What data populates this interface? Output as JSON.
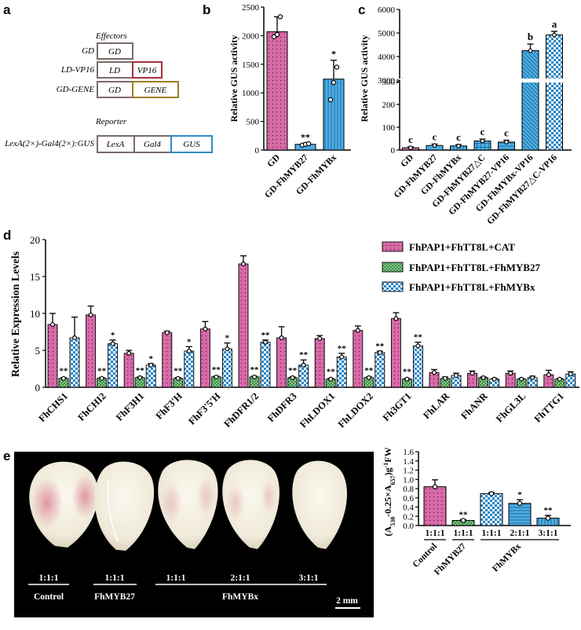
{
  "panel_labels": {
    "a": "a",
    "b": "b",
    "c": "c",
    "d": "d",
    "e": "e"
  },
  "colors": {
    "pink": "#d86aa8",
    "blue": "#4aaee6",
    "green": "#2f8a3a",
    "white": "#ffffff",
    "box_gd": "#7a6a6a",
    "box_vp16": "#a2333d",
    "box_gene": "#9b7d22",
    "box_gus": "#2d8cc4"
  },
  "panel_a": {
    "effectors_title": "Effectors",
    "reporter_title": "Reporter",
    "rows": [
      {
        "label": "GD",
        "boxes": [
          "GD"
        ]
      },
      {
        "label": "LD-VP16",
        "boxes": [
          "LD",
          "VP16"
        ]
      },
      {
        "label": "GD-GENE",
        "boxes": [
          "GD",
          "GENE"
        ]
      },
      {
        "label": "LexA(2×)-Gal4(2×):GUS",
        "boxes": [
          "LexA",
          "Gal4",
          "GUS"
        ]
      }
    ]
  },
  "chart_data": [
    {
      "id": "b",
      "type": "bar",
      "ylabel": "Relative GUS activity",
      "ylim": [
        0,
        2500
      ],
      "yticks": [
        "0",
        "500",
        "1000",
        "1500",
        "2000",
        "2500"
      ],
      "categories": [
        "GD",
        "GD-FhMYB27",
        "GD-FhMYBx"
      ],
      "values": [
        2070,
        100,
        1240
      ],
      "errors": [
        260,
        20,
        330
      ],
      "significance": [
        "",
        "**",
        "*"
      ],
      "replicates": [
        [
          1980,
          2020,
          2330
        ],
        [
          85,
          100,
          110
        ],
        [
          880,
          1180,
          1450
        ]
      ]
    },
    {
      "id": "c",
      "type": "bar",
      "ylabel": "Relative GUS activity",
      "ylim": [
        0,
        6000
      ],
      "axis_break": [
        300,
        3000
      ],
      "yticks": [
        "0",
        "100",
        "200",
        "300",
        "3000",
        "4000",
        "5000",
        "6000"
      ],
      "categories": [
        "GD",
        "GD-FhMYB27",
        "GD-FhMYBx",
        "GD-FhMYB27△C",
        "GD-FhMYB27-VP16",
        "GD-FhMYBx-VP16",
        "GD-FhMYB27△C-VP16"
      ],
      "values": [
        10,
        20,
        18,
        40,
        35,
        4250,
        4920
      ],
      "errors": [
        4,
        6,
        6,
        8,
        8,
        280,
        150
      ],
      "significance": [
        "c",
        "c",
        "c",
        "c",
        "c",
        "b",
        "a"
      ]
    },
    {
      "id": "d",
      "type": "bar",
      "ylabel": "Relative Expression Levels",
      "ylim": [
        0,
        20
      ],
      "yticks": [
        "0",
        "5",
        "10",
        "15",
        "20"
      ],
      "categories": [
        "FhCHS1",
        "FhCHI2",
        "FhF3H1",
        "FhF3'H",
        "FhF3'5'H",
        "FhDFR1/2",
        "FhDFR3",
        "FhLDOX1",
        "FhLDOX2",
        "Fh3GT1",
        "FhLAR",
        "FhANR",
        "FhGL3L",
        "FhTTG1"
      ],
      "series": [
        {
          "name": "FhPAP1+FhTT8L+CAT",
          "values": [
            8.5,
            9.8,
            4.6,
            7.4,
            7.9,
            16.7,
            6.7,
            6.6,
            7.7,
            9.3,
            2.0,
            1.9,
            1.9,
            1.7
          ],
          "errors": [
            1.5,
            1.2,
            0.4,
            0.2,
            1.0,
            1.1,
            1.5,
            0.4,
            0.6,
            0.8,
            0.4,
            0.3,
            0.3,
            0.6
          ]
        },
        {
          "name": "FhPAP1+FhTT8L+FhMYB27",
          "values": [
            1.2,
            1.2,
            1.3,
            1.2,
            1.4,
            1.4,
            1.3,
            1.1,
            1.3,
            1.1,
            1.2,
            1.3,
            1.1,
            1.1
          ],
          "errors": [
            0.1,
            0.1,
            0.1,
            0.1,
            0.1,
            0.1,
            0.1,
            0.1,
            0.1,
            0.1,
            0.2,
            0.1,
            0.1,
            0.1
          ]
        },
        {
          "name": "FhPAP1+FhTT8L+FhMYBx",
          "values": [
            6.7,
            5.9,
            3.0,
            4.9,
            5.2,
            6.1,
            3.0,
            4.1,
            4.7,
            5.6,
            1.6,
            1.1,
            1.3,
            1.8
          ],
          "errors": [
            2.8,
            0.5,
            0.2,
            0.6,
            0.8,
            0.3,
            0.7,
            0.5,
            0.2,
            0.5,
            0.3,
            0.1,
            0.2,
            0.3
          ]
        }
      ],
      "significance": [
        [
          "",
          "**",
          ""
        ],
        [
          "",
          "**",
          "*"
        ],
        [
          "",
          "**",
          "*"
        ],
        [
          "",
          "**",
          "*"
        ],
        [
          "",
          "**",
          "*"
        ],
        [
          "",
          "**",
          "**"
        ],
        [
          "",
          "**",
          "**"
        ],
        [
          "",
          "**",
          "**"
        ],
        [
          "",
          "**",
          "**"
        ],
        [
          "",
          "**",
          "**"
        ],
        [
          "",
          "",
          ""
        ],
        [
          "",
          "",
          ""
        ],
        [
          "",
          "",
          ""
        ],
        [
          "",
          "",
          ""
        ]
      ]
    },
    {
      "id": "e_chart",
      "type": "bar",
      "ylabel": "(A530-0.25×A657)g-1FW",
      "ylim": [
        0,
        1.6
      ],
      "yticks": [
        "0.0",
        "0.2",
        "0.4",
        "0.6",
        "0.8",
        "1.0",
        "1.2",
        "1.4",
        "1.6"
      ],
      "categories": [
        "1:1:1",
        "1:1:1",
        "1:1:1",
        "2:1:1",
        "3:1:1"
      ],
      "groups": [
        "Control",
        "FhMYB27",
        "FhMYBx"
      ],
      "values": [
        0.84,
        0.11,
        0.69,
        0.48,
        0.16
      ],
      "errors": [
        0.15,
        0.02,
        0.03,
        0.08,
        0.06
      ],
      "significance": [
        "",
        "**",
        "",
        "*",
        "**"
      ]
    }
  ],
  "panel_e": {
    "ratios": [
      "1:1:1",
      "1:1:1",
      "1:1:1",
      "2:1:1",
      "3:1:1"
    ],
    "groups": [
      "Control",
      "FhMYB27",
      "FhMYBx"
    ],
    "scale_bar": "2 mm"
  },
  "ylabel_e_parts": {
    "open": "(A",
    "sub1": "530",
    "mid": "-0.25×A",
    "sub2": "657",
    "close": ")g",
    "sup": "-1",
    "tail": "FW"
  }
}
